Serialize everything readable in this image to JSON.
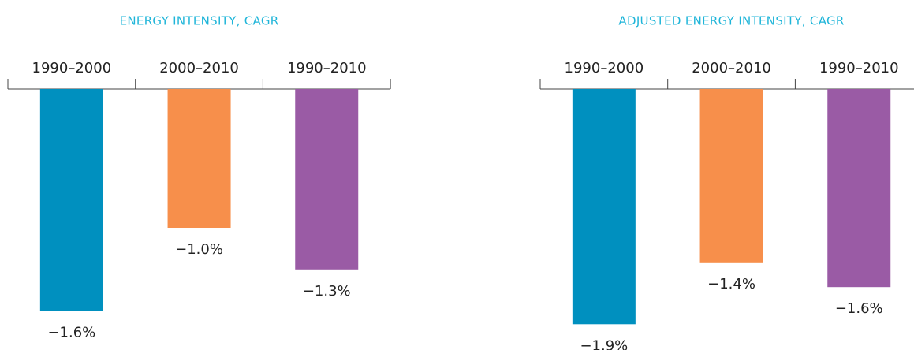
{
  "chart_data": [
    {
      "type": "bar",
      "title": "ENERGY INTENSITY, CAGR",
      "categories": [
        "1990–2000",
        "2000–2010",
        "1990–2010"
      ],
      "values": [
        -1.6,
        -1.0,
        -1.3
      ],
      "value_labels": [
        "−1.6%",
        "−1.0%",
        "−1.3%"
      ],
      "colors": [
        "#0090bf",
        "#f78f4b",
        "#9a5ba5"
      ]
    },
    {
      "type": "bar",
      "title": "ADJUSTED ENERGY INTENSITY, CAGR",
      "categories": [
        "1990–2000",
        "2000–2010",
        "1990–2010"
      ],
      "values": [
        -1.9,
        -1.4,
        -1.6
      ],
      "value_labels": [
        "−1.9%",
        "−1.4%",
        "−1.6%"
      ],
      "colors": [
        "#0090bf",
        "#f78f4b",
        "#9a5ba5"
      ]
    }
  ]
}
